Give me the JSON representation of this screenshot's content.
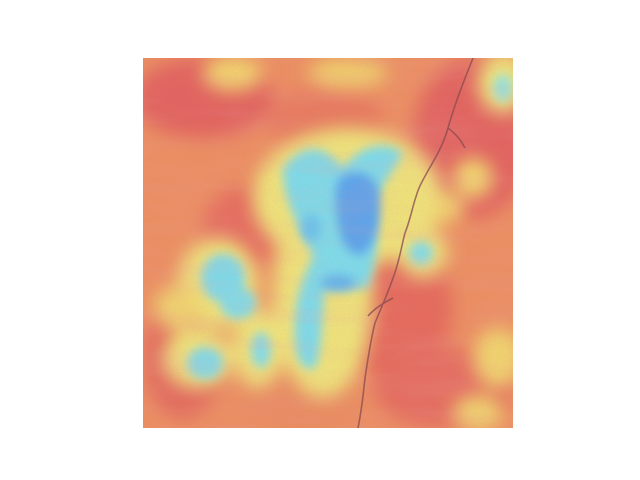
{
  "image": {
    "description_visible": false,
    "colormap": [
      "#5b9bf0",
      "#7ad9ee",
      "#f3ef7b",
      "#f5b56a",
      "#e86a5b"
    ],
    "background": "#ffffff"
  }
}
